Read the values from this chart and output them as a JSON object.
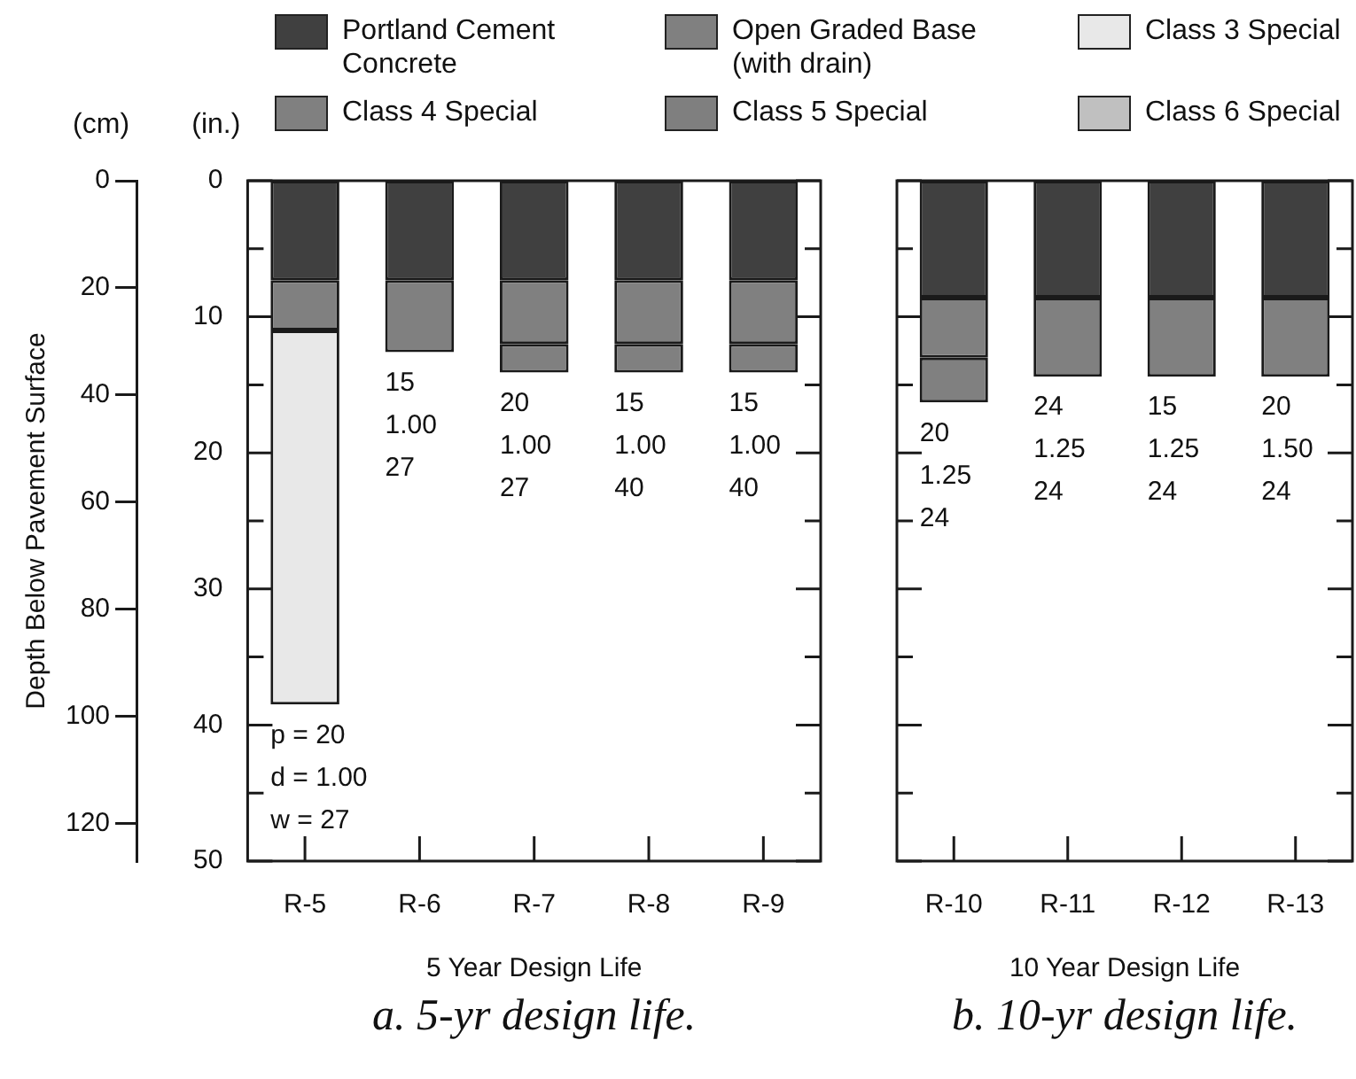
{
  "chart_data": [
    {
      "type": "bar",
      "stacked": true,
      "title": "a. 5-yr design life.",
      "xlabel": "5 Year Design Life",
      "y2label": "Depth Below Pavement Surface",
      "legend": "top",
      "tick_labels": "xy",
      "categories": [
        "R-5",
        "R-6",
        "R-7",
        "R-8",
        "R-9"
      ],
      "series": [
        {
          "name": "Portland Cement Concrete",
          "color": "#404040",
          "values": [
            7.3,
            7.3,
            7.3,
            7.3,
            7.3
          ]
        },
        {
          "name": "Open Graded Base (with drain)",
          "color": "#808080",
          "values": [
            3.7,
            5.3,
            4.7,
            4.7,
            4.7
          ]
        },
        {
          "name": "Class 3 Special",
          "color": "#e8e8e8",
          "values": [
            27.5,
            null,
            null,
            null,
            null
          ]
        },
        {
          "name": "Class 4 Special",
          "color": "#808080",
          "values": [
            null,
            null,
            2.1,
            2.1,
            2.1
          ]
        },
        {
          "name": "Class 5 Special",
          "color": "#7f7f7f",
          "values": [
            null,
            null,
            null,
            null,
            null
          ]
        },
        {
          "name": "Class 6 Special",
          "color": "#c0c0c0",
          "values": [
            null,
            null,
            null,
            null,
            null
          ]
        }
      ],
      "ylim": [
        50,
        0
      ],
      "yticks": [
        0,
        {
          "value": 5,
          "label": null
        },
        10,
        {
          "value": 15,
          "label": null
        },
        20,
        {
          "value": 25,
          "label": null
        },
        30,
        {
          "value": 35,
          "label": null
        },
        40,
        {
          "value": 45,
          "label": null
        },
        50
      ],
      "y2lim": [
        127,
        0
      ],
      "y2ticks": [
        0,
        20,
        40,
        60,
        80,
        100,
        120
      ],
      "annotations": [
        "(cm)",
        "(in.)",
        "p = 20\nd = 1.00\nw = 27",
        "15\n1.00\n27",
        "20\n1.00\n27",
        "15\n1.00\n40",
        "15\n1.00\n40"
      ]
    },
    {
      "type": "bar",
      "stacked": true,
      "title": "b. 10-yr design life.",
      "xlabel": "10 Year Design Life",
      "tick_labels": "x",
      "categories": [
        "R-10",
        "R-11",
        "R-12",
        "R-13"
      ],
      "series": [
        {
          "color": "#404040",
          "values": [
            8.6,
            8.6,
            8.6,
            8.6
          ]
        },
        {
          "color": "#808080",
          "values": [
            4.4,
            5.8,
            5.8,
            5.8
          ]
        },
        {
          "color": "#808080",
          "values": [
            3.3,
            null,
            null,
            null
          ]
        }
      ],
      "ylim": [
        50,
        0
      ],
      "yticks": [
        0,
        {
          "value": 5,
          "label": null
        },
        10,
        {
          "value": 15,
          "label": null
        },
        20,
        {
          "value": 25,
          "label": null
        },
        30,
        {
          "value": 35,
          "label": null
        },
        40,
        {
          "value": 45,
          "label": null
        },
        50
      ],
      "annotations": [
        "20\n1.25\n24",
        "24\n1.25\n24",
        "15\n1.25\n24",
        "20\n1.50\n24"
      ]
    }
  ]
}
